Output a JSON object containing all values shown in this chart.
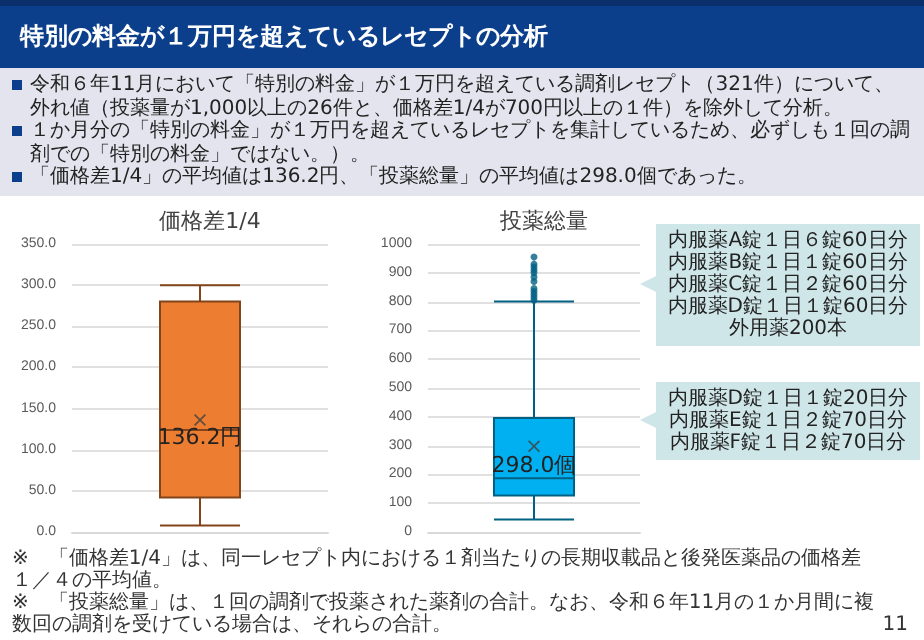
{
  "chart_data": [
    {
      "type": "other",
      "title": "特別の料金が１万円を超えているレセプトの分析",
      "annotations": [
        "令和６年11月において「特別の料金」が１万円を超えている調剤レセプト（321件）について、外れ値（投薬量が1,000以上の26件と、価格差1/4が700円以上の１件）を除外して分析。",
        "１か月分の「特別の料金」が１万円を超えているレセプトを集計しているため、必ずしも１回の調剤での「特別の料金」ではない。）。",
        "「価格差1/4」の平均値は136.2円、「投薬総量」の平均値は298.0個であった。"
      ]
    },
    {
      "type": "box",
      "title": "価格差1/4",
      "categories": [
        null
      ],
      "color": "#ed7d31",
      "grid": "y",
      "ylim": [
        0,
        350
      ],
      "yticks": [
        {
          "value": 0,
          "label": "0.0"
        },
        {
          "value": 50,
          "label": "50.0"
        },
        {
          "value": 100,
          "label": "100.0"
        },
        {
          "value": 150,
          "label": "150.0"
        },
        {
          "value": 200,
          "label": "200.0"
        },
        {
          "value": 250,
          "label": "250.0"
        },
        {
          "value": 300,
          "label": "300.0"
        },
        {
          "value": 350,
          "label": "350.0"
        }
      ],
      "boxes": [
        {
          "low": 8,
          "q1": 42,
          "median": 124,
          "q3": 280,
          "high": 300,
          "mean": 136.2
        }
      ],
      "annotations": [
        "136.2円"
      ]
    },
    {
      "type": "box",
      "title": "投薬総量",
      "categories": [
        null
      ],
      "color": "#00b0f0",
      "grid": "y",
      "ylim": [
        0,
        1000
      ],
      "yticks": [
        0,
        100,
        200,
        300,
        400,
        500,
        600,
        700,
        800,
        900,
        1000
      ],
      "boxes": [
        {
          "low": 43,
          "q1": 127,
          "median": 187,
          "q3": 396,
          "high": 800,
          "mean": 298.0,
          "outliers": [
            805,
            815,
            825,
            835,
            845,
            870,
            885,
            900,
            910,
            920,
            930,
            955
          ]
        }
      ],
      "annotations": [
        "298.0個",
        "内服薬A錠１日６錠60日分内服薬B錠１日１錠60日分内服薬C錠１日２錠60日分内服薬D錠１日１錠60日分外用薬200本",
        "内服薬D錠１日１錠20日分内服薬E錠１日２錠70日分内服薬F錠１日２錠70日分"
      ]
    },
    {
      "type": "other",
      "annotations": [
        "※　「価格差1/4」は、同一レセプト内における１剤当たりの長期収載品と後発医薬品の価格差１／４の平均値。",
        "※　「投薬総量」は、１回の調剤で投薬された薬剤の合計。なお、令和６年11月の１か月間に複数回の調剤を受けている場合は、それらの合計。",
        "11"
      ]
    }
  ]
}
